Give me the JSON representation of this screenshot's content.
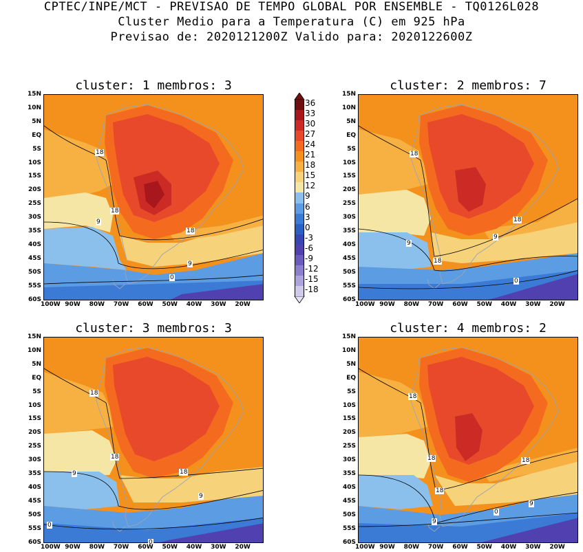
{
  "header": {
    "line1": "CPTEC/INPE/MCT - PREVISAO DE TEMPO GLOBAL POR ENSEMBLE - TQ0126L028",
    "line2": "Cluster Medio para a Temperatura (C) em 925 hPa",
    "line3": "Previsao de: 2020121200Z   Valido para: 2020122600Z"
  },
  "axes": {
    "lat_labels": [
      "15N",
      "10N",
      "5N",
      "EQ",
      "5S",
      "10S",
      "15S",
      "20S",
      "25S",
      "30S",
      "35S",
      "40S",
      "45S",
      "50S",
      "55S",
      "60S"
    ],
    "lon_labels": [
      "100W",
      "90W",
      "80W",
      "70W",
      "60W",
      "50W",
      "40W",
      "30W",
      "20W"
    ]
  },
  "colorbar": {
    "labels": [
      "36",
      "33",
      "30",
      "27",
      "24",
      "21",
      "18",
      "15",
      "12",
      "9",
      "6",
      "3",
      "0",
      "-3",
      "-6",
      "-9",
      "-12",
      "-15",
      "-18"
    ],
    "colors": [
      "#6e0f12",
      "#a8171c",
      "#cc2a24",
      "#e8492a",
      "#f46b1f",
      "#f4901c",
      "#f7b143",
      "#f6d27a",
      "#f5e6a6",
      "#8cc0ec",
      "#5c9ce3",
      "#3b7bd6",
      "#2a5fc4",
      "#3746b3",
      "#5040b0",
      "#6a5bbd",
      "#8c80cc",
      "#ada4dc",
      "#d0caec"
    ]
  },
  "panels": [
    {
      "title": "cluster: 1   membros: 3",
      "contour_labels": [
        "18",
        "18",
        "9",
        "18",
        "9",
        "0"
      ]
    },
    {
      "title": "cluster: 2   membros: 7",
      "contour_labels": [
        "18",
        "9",
        "18",
        "9",
        "18",
        "0"
      ]
    },
    {
      "title": "cluster: 3   membros: 3",
      "contour_labels": [
        "18",
        "18",
        "9",
        "18",
        "9",
        "0",
        "0"
      ]
    },
    {
      "title": "cluster: 4   membros: 2",
      "contour_labels": [
        "18",
        "18",
        "18",
        "18",
        "9",
        "0",
        "9"
      ]
    }
  ]
}
